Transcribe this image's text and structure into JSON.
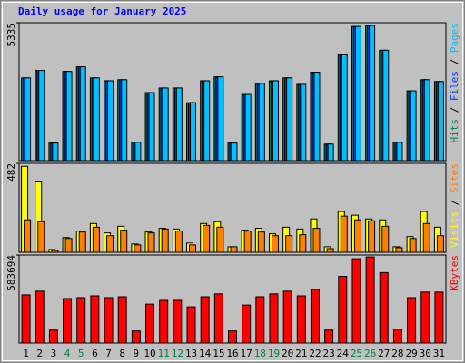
{
  "legend_separator": " / ",
  "chart_data": [
    {
      "type": "bar",
      "title": "Daily usage for January 2025",
      "categories": [
        "1",
        "2",
        "3",
        "4",
        "5",
        "6",
        "7",
        "8",
        "9",
        "10",
        "11",
        "12",
        "13",
        "14",
        "15",
        "16",
        "17",
        "18",
        "19",
        "20",
        "21",
        "22",
        "23",
        "24",
        "25",
        "26",
        "27",
        "28",
        "29",
        "30",
        "31"
      ],
      "category_colors": [
        "#000000",
        "#000000",
        "#000000",
        "#008040",
        "#008040",
        "#000000",
        "#000000",
        "#000000",
        "#000000",
        "#000000",
        "#008040",
        "#008040",
        "#000000",
        "#000000",
        "#000000",
        "#000000",
        "#000000",
        "#008040",
        "#008040",
        "#000000",
        "#000000",
        "#000000",
        "#000000",
        "#000000",
        "#008040",
        "#008040",
        "#000000",
        "#000000",
        "#000000",
        "#000000",
        "#000000"
      ],
      "ylim": [
        0,
        5335
      ],
      "yticks": [
        5335
      ],
      "series": [
        {
          "name": "Hits",
          "color": "#00805c",
          "values": [
            3200,
            3490,
            680,
            3450,
            3630,
            3200,
            3090,
            3130,
            710,
            2630,
            2810,
            2810,
            2240,
            3090,
            3240,
            680,
            2560,
            2990,
            3090,
            3200,
            2950,
            3420,
            640,
            4090,
            5190,
            5230,
            4270,
            710,
            2700,
            3130,
            3060
          ]
        },
        {
          "name": "Files",
          "color": "#0040ff",
          "values": [
            3200,
            3490,
            680,
            3450,
            3630,
            3200,
            3090,
            3130,
            710,
            2630,
            2810,
            2810,
            2240,
            3090,
            3240,
            680,
            2560,
            2990,
            3090,
            3200,
            2950,
            3420,
            640,
            4090,
            5190,
            5230,
            4270,
            710,
            2700,
            3130,
            3060
          ]
        },
        {
          "name": "Pages",
          "color": "#00c0ff",
          "values": [
            3200,
            3490,
            680,
            3450,
            3630,
            3200,
            3090,
            3130,
            710,
            2630,
            2810,
            2810,
            2240,
            3090,
            3240,
            680,
            2560,
            2990,
            3090,
            3200,
            2950,
            3420,
            640,
            4090,
            5190,
            5230,
            4270,
            710,
            2700,
            3130,
            3060
          ]
        }
      ]
    },
    {
      "type": "bar",
      "ylim": [
        0,
        482
      ],
      "yticks": [
        482
      ],
      "series": [
        {
          "name": "Visits",
          "color": "#ffff00",
          "values": [
            466,
            386,
            15,
            80,
            115,
            156,
            105,
            141,
            45,
            110,
            130,
            126,
            50,
            156,
            166,
            30,
            120,
            130,
            100,
            136,
            126,
            181,
            30,
            221,
            201,
            181,
            176,
            30,
            85,
            221,
            136
          ]
        },
        {
          "name": "Sites",
          "color": "#ff8000",
          "values": [
            176,
            166,
            10,
            75,
            110,
            136,
            90,
            120,
            40,
            105,
            126,
            115,
            40,
            146,
            136,
            30,
            115,
            110,
            90,
            90,
            95,
            130,
            20,
            196,
            176,
            171,
            141,
            25,
            75,
            156,
            90
          ]
        }
      ]
    },
    {
      "type": "bar",
      "ylim": [
        0,
        583694
      ],
      "yticks": [
        583694
      ],
      "series": [
        {
          "name": "KBytes",
          "color": "#ff0000",
          "values": [
            319500,
            344000,
            86000,
            295000,
            301000,
            313000,
            301000,
            307000,
            80000,
            258000,
            283000,
            283000,
            240000,
            307000,
            326000,
            80000,
            252000,
            307000,
            326000,
            344000,
            313000,
            356000,
            86000,
            442000,
            559000,
            571000,
            467000,
            92000,
            301000,
            338000,
            338000
          ]
        }
      ]
    }
  ]
}
